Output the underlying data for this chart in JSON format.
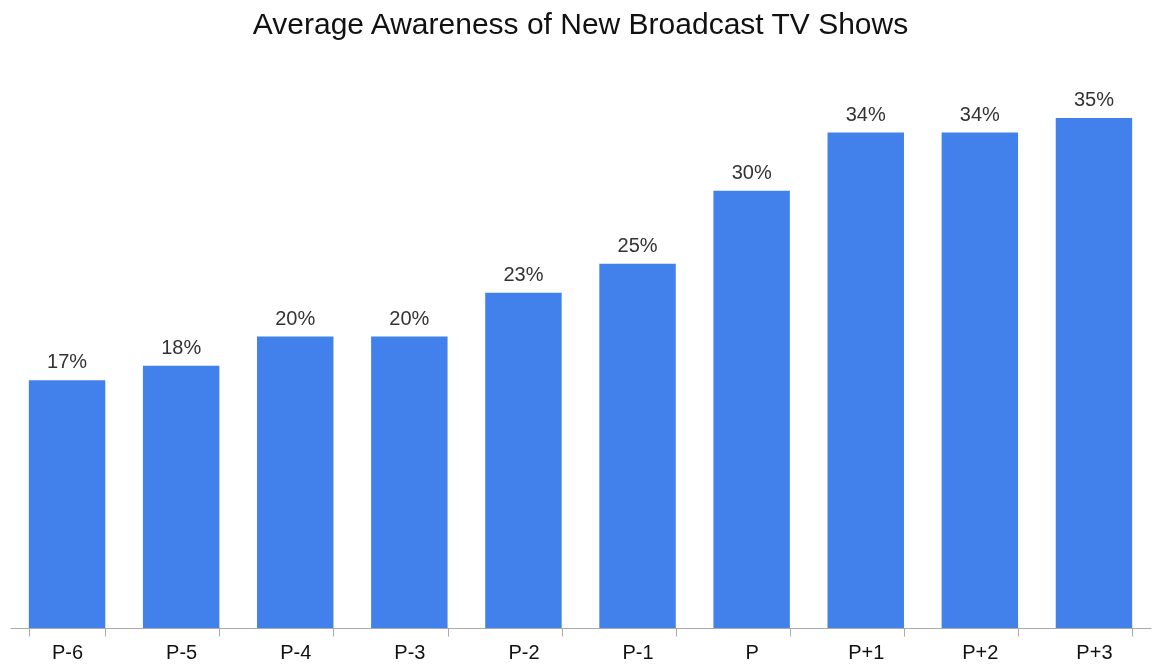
{
  "chart_data": {
    "type": "bar",
    "title": "Average Awareness of New Broadcast TV Shows",
    "categories": [
      "P-6",
      "P-5",
      "P-4",
      "P-3",
      "P-2",
      "P-1",
      "P",
      "P+1",
      "P+2",
      "P+3"
    ],
    "values": [
      17,
      18,
      20,
      20,
      23,
      25,
      30,
      34,
      34,
      35
    ],
    "value_labels": [
      "17%",
      "18%",
      "20%",
      "20%",
      "23%",
      "25%",
      "30%",
      "34%",
      "34%",
      "35%"
    ],
    "color": "#4280ec"
  }
}
